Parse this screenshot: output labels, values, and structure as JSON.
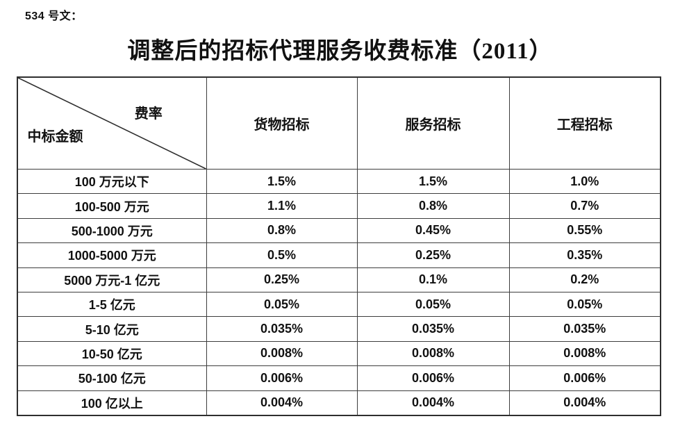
{
  "page": {
    "doc_label": "534 号文：",
    "title": "调整后的招标代理服务收费标准（2011）"
  },
  "table": {
    "corner": {
      "top_right": "费率",
      "bottom_left": "中标金额"
    },
    "columns": [
      "货物招标",
      "服务招标",
      "工程招标"
    ],
    "rows": [
      {
        "label": "100 万元以下",
        "values": [
          "1.5%",
          "1.5%",
          "1.0%"
        ]
      },
      {
        "label": "100-500 万元",
        "values": [
          "1.1%",
          "0.8%",
          "0.7%"
        ]
      },
      {
        "label": "500-1000 万元",
        "values": [
          "0.8%",
          "0.45%",
          "0.55%"
        ]
      },
      {
        "label": "1000-5000 万元",
        "values": [
          "0.5%",
          "0.25%",
          "0.35%"
        ]
      },
      {
        "label": "5000 万元-1 亿元",
        "values": [
          "0.25%",
          "0.1%",
          "0.2%"
        ]
      },
      {
        "label": "1-5 亿元",
        "values": [
          "0.05%",
          "0.05%",
          "0.05%"
        ]
      },
      {
        "label": "5-10 亿元",
        "values": [
          "0.035%",
          "0.035%",
          "0.035%"
        ]
      },
      {
        "label": "10-50 亿元",
        "values": [
          "0.008%",
          "0.008%",
          "0.008%"
        ]
      },
      {
        "label": "50-100 亿元",
        "values": [
          "0.006%",
          "0.006%",
          "0.006%"
        ]
      },
      {
        "label": "100 亿以上",
        "values": [
          "0.004%",
          "0.004%",
          "0.004%"
        ]
      }
    ]
  },
  "colors": {
    "background": "#ffffff",
    "text": "#111111",
    "border": "#3d3d3d",
    "outer_border": "#2e2e2e"
  }
}
